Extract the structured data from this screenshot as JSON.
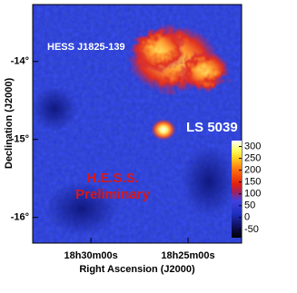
{
  "chart_data": {
    "type": "heatmap",
    "xlabel": "Right Ascension (J2000)",
    "ylabel": "Declination (J2000)",
    "xlim": [
      278.25,
      275.56
    ],
    "xticks": [
      {
        "value": 277.5,
        "label": "18h30m00s"
      },
      {
        "value": 276.25,
        "label": "18h25m00s"
      }
    ],
    "ylim": [
      -16.33,
      -13.27
    ],
    "yticks": [
      {
        "value": -14,
        "label": "-14°"
      },
      {
        "value": -15,
        "label": "-15°"
      },
      {
        "value": -16,
        "label": "-16°"
      }
    ],
    "zlim": [
      -85,
      325
    ],
    "zticks": [
      300,
      250,
      200,
      150,
      100,
      50,
      0,
      -50
    ],
    "annotations": [
      "HESS J1825-139",
      "LS 5039",
      "H.E.S.S.",
      "Preliminary"
    ]
  }
}
